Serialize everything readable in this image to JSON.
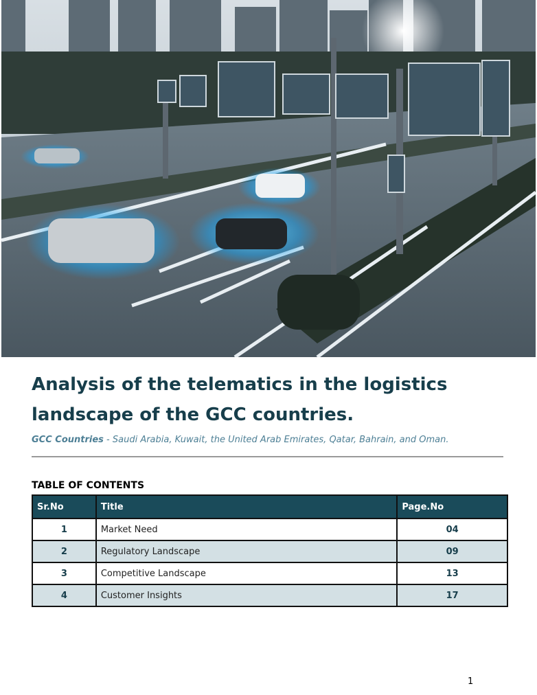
{
  "title": "Analysis of the telematics in the logistics landscape of the GCC countries.",
  "subtitle": {
    "label": "GCC Countries",
    "text": "- Saudi Arabia, Kuwait, the United Arab Emirates, Qatar, Bahrain, and Oman."
  },
  "toc": {
    "heading": "TABLE OF CONTENTS",
    "columns": [
      "Sr.No",
      "Title",
      "Page.No"
    ],
    "rows": [
      [
        "1",
        "Market Need",
        "04"
      ],
      [
        "2",
        "Regulatory Landscape",
        "09"
      ],
      [
        "3",
        "Competitive Landscape",
        "13"
      ],
      [
        "4",
        "Customer Insights",
        "17"
      ]
    ]
  },
  "page_number": "1"
}
